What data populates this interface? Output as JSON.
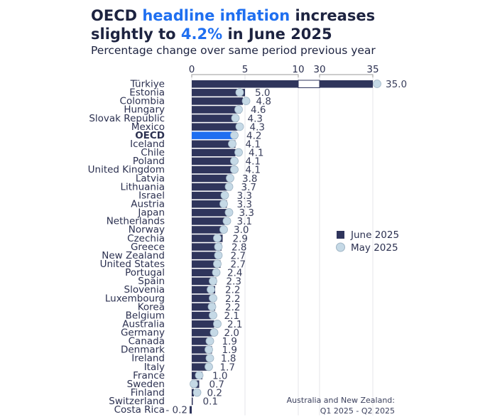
{
  "title": {
    "p1": "OECD ",
    "p2": "headline inflation",
    "p3": " increases",
    "p4": "slightly to ",
    "p5": "4.2%",
    "p6": " in June 2025"
  },
  "subtitle": "Percentage change over same period previous year",
  "colors": {
    "june": "#2f355c",
    "oecd": "#1f6ff0",
    "may": "#c5d9e6",
    "title_accent": "#1f6ff0"
  },
  "chart_data": {
    "type": "bar",
    "orientation": "horizontal",
    "axis_break": [
      10,
      30
    ],
    "xticks": [
      0,
      5,
      10,
      30,
      35
    ],
    "legend_position": "right",
    "note": [
      "Australia and New Zealand:",
      "Q1 2025 - Q2 2025"
    ],
    "categories": [
      "Türkiye",
      "Estonia",
      "Colombia",
      "Hungary",
      "Slovak Republic",
      "Mexico",
      "OECD",
      "Iceland",
      "Chile",
      "Poland",
      "United Kingdom",
      "Latvia",
      "Lithuania",
      "Israel",
      "Austria",
      "Japan",
      "Netherlands",
      "Norway",
      "Czechia",
      "Greece",
      "New Zealand",
      "United States",
      "Portugal",
      "Spain",
      "Slovenia",
      "Luxembourg",
      "Korea",
      "Belgium",
      "Australia",
      "Germany",
      "Canada",
      "Denmark",
      "Ireland",
      "Italy",
      "France",
      "Sweden",
      "Finland",
      "Switzerland",
      "Costa Rica"
    ],
    "series": [
      {
        "name": "June 2025",
        "values": [
          35.0,
          5.0,
          4.8,
          4.6,
          4.3,
          4.3,
          4.2,
          4.1,
          4.1,
          4.1,
          4.1,
          3.8,
          3.7,
          3.3,
          3.3,
          3.3,
          3.1,
          3.0,
          2.9,
          2.8,
          2.7,
          2.7,
          2.4,
          2.3,
          2.2,
          2.2,
          2.2,
          2.1,
          2.1,
          2.0,
          1.9,
          1.9,
          1.8,
          1.7,
          1.0,
          0.7,
          0.2,
          0.1,
          -0.2
        ]
      },
      {
        "name": "May 2025",
        "values": [
          35.4,
          4.5,
          5.1,
          4.4,
          4.1,
          4.5,
          4.0,
          3.8,
          4.4,
          4.0,
          4.0,
          3.6,
          3.5,
          3.1,
          3.0,
          3.5,
          3.3,
          3.0,
          2.4,
          2.5,
          2.5,
          2.4,
          2.3,
          2.0,
          1.8,
          2.0,
          1.9,
          2.0,
          2.4,
          2.1,
          1.7,
          1.6,
          1.7,
          1.6,
          0.7,
          0.2,
          0.5,
          null,
          null
        ]
      }
    ],
    "value_labels": [
      "35.0",
      "5.0",
      "4.8",
      "4.6",
      "4.3",
      "4.3",
      "4.2",
      "4.1",
      "4.1",
      "4.1",
      "4.1",
      "3.8",
      "3.7",
      "3.3",
      "3.3",
      "3.3",
      "3.1",
      "3.0",
      "2.9",
      "2.8",
      "2.7",
      "2.7",
      "2.4",
      "2.3",
      "2.2",
      "2.2",
      "2.2",
      "2.1",
      "2.1",
      "2.0",
      "1.9",
      "1.9",
      "1.8",
      "1.7",
      "1.0",
      "0.7",
      "0.2",
      "0.1",
      "- 0.2"
    ]
  }
}
